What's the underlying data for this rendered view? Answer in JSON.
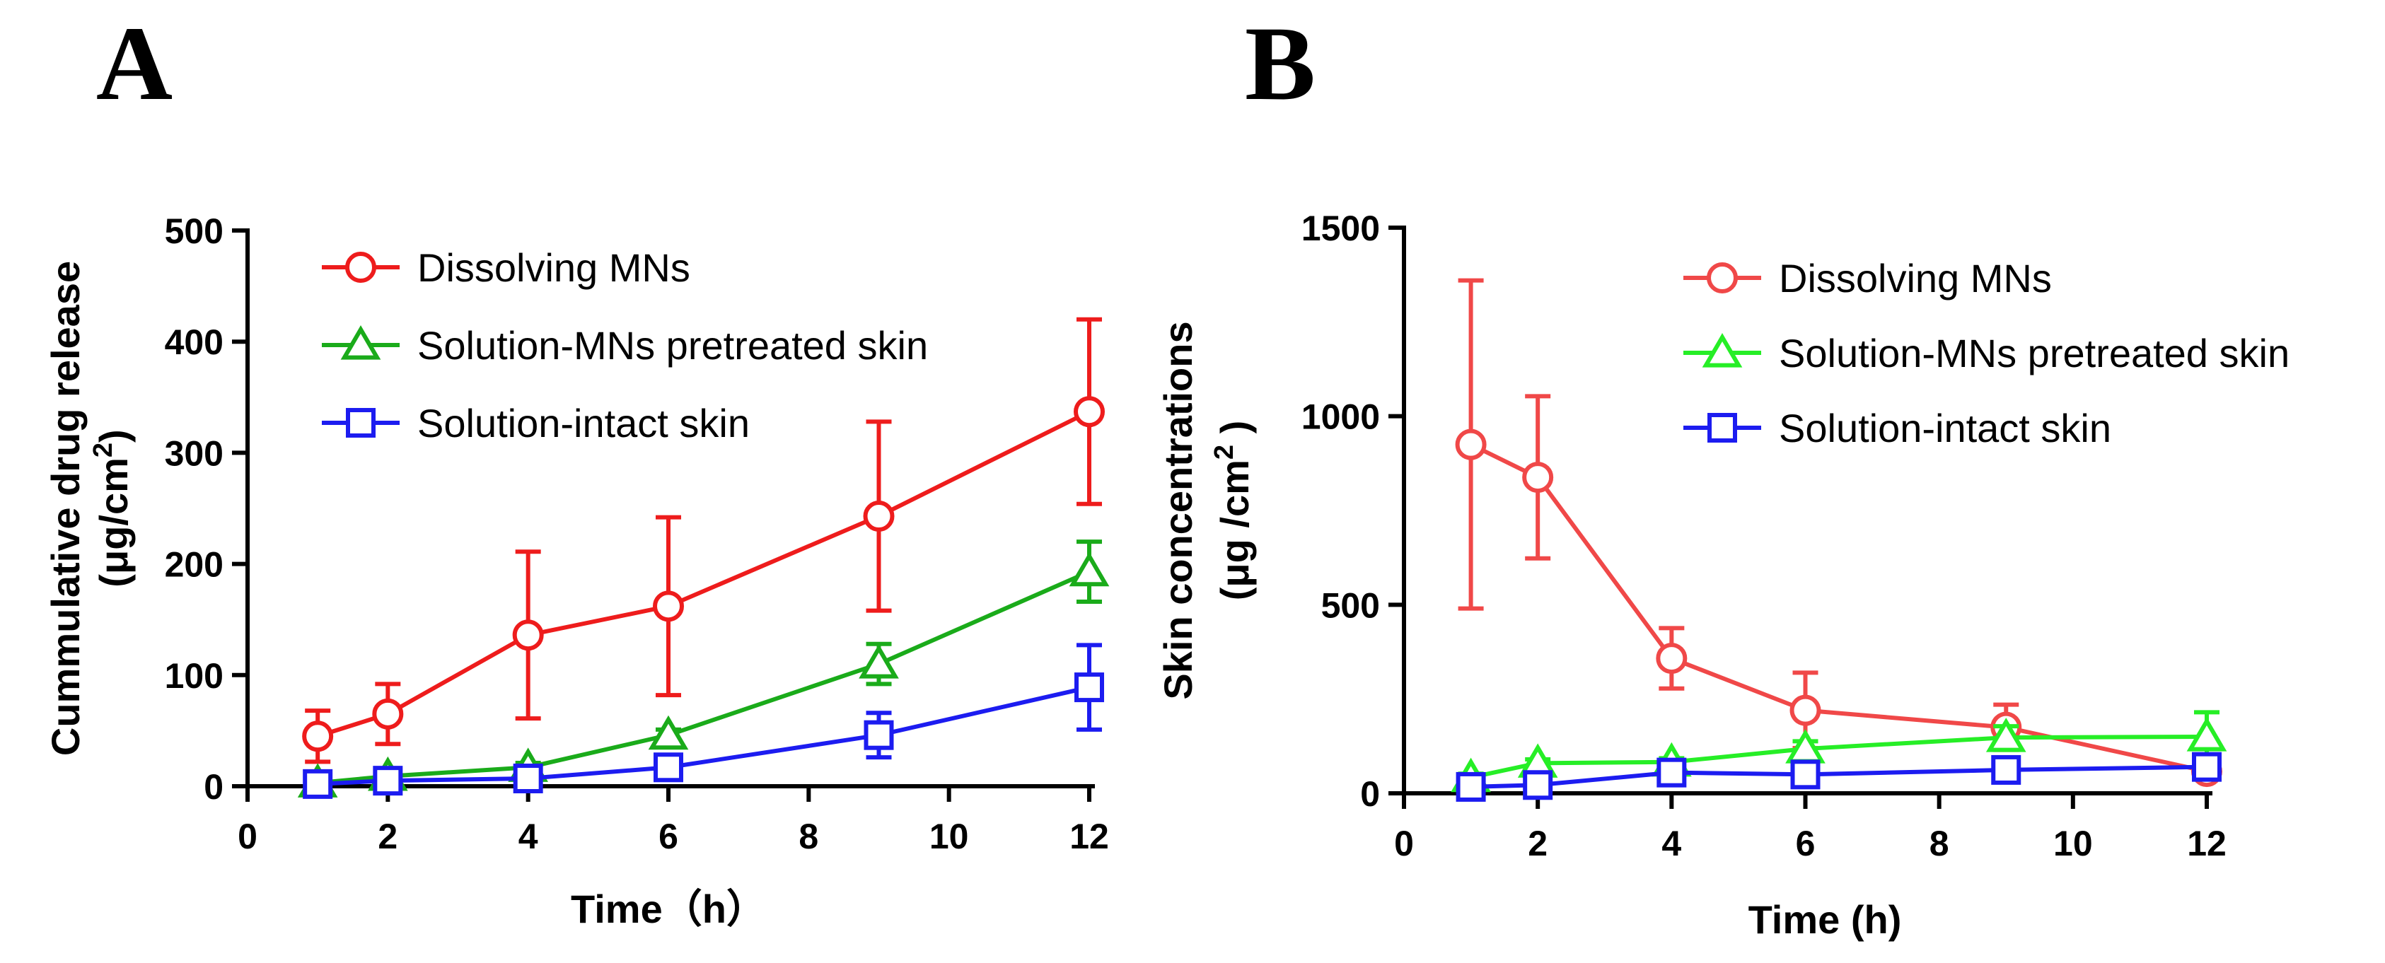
{
  "chart_data": [
    {
      "panel": "A",
      "type": "line",
      "title": "",
      "xlabel": "Time（h）",
      "ylabel": "Cummulative drug release",
      "ylabel_unit": "(μg/cm",
      "ylabel_unit_sup": "2",
      "ylabel_unit_tail": ")",
      "xlim": [
        0,
        12
      ],
      "ylim": [
        0,
        500
      ],
      "xticks": [
        "0",
        "2",
        "4",
        "6",
        "8",
        "10",
        "12"
      ],
      "yticks": [
        "0",
        "100",
        "200",
        "300",
        "400",
        "500"
      ],
      "x": [
        1,
        2,
        4,
        6,
        9,
        12
      ],
      "legend_position": "top-left",
      "series": [
        {
          "name": "Dissolving MNs",
          "marker": "circle",
          "color": "#ee1c1c",
          "values": [
            45,
            65,
            136,
            162,
            243,
            337
          ],
          "errors": [
            23,
            27,
            75,
            80,
            85,
            83
          ]
        },
        {
          "name": "Solution-MNs pretreated skin",
          "marker": "triangle",
          "color": "#1aab1a",
          "values": [
            3,
            9,
            17,
            46,
            110,
            193
          ],
          "errors": [
            2,
            3,
            4,
            5,
            18,
            27
          ]
        },
        {
          "name": "Solution-intact skin",
          "marker": "square",
          "color": "#1c1cf0",
          "values": [
            2,
            5,
            7,
            17,
            46,
            89
          ],
          "errors": [
            1,
            2,
            3,
            4,
            20,
            38
          ]
        }
      ]
    },
    {
      "panel": "B",
      "type": "line",
      "title": "",
      "xlabel": "Time (h)",
      "ylabel": "Skin concentrations",
      "ylabel_unit": "(μg /cm",
      "ylabel_unit_sup": "2",
      "ylabel_unit_tail": " )",
      "xlim": [
        0,
        12
      ],
      "ylim": [
        0,
        1500
      ],
      "xticks": [
        "0",
        "2",
        "4",
        "6",
        "8",
        "10",
        "12"
      ],
      "yticks": [
        "0",
        "500",
        "1000",
        "1500"
      ],
      "x": [
        1,
        2,
        4,
        6,
        9,
        12
      ],
      "legend_position": "top-right",
      "series": [
        {
          "name": "Dissolving MNs",
          "marker": "circle",
          "color": "#f04848",
          "values": [
            925,
            838,
            358,
            220,
            175,
            58
          ],
          "errors": [
            435,
            215,
            80,
            100,
            60,
            10
          ]
        },
        {
          "name": "Solution-MNs pretreated skin",
          "marker": "triangle",
          "color": "#26ee26",
          "values": [
            42,
            80,
            83,
            118,
            148,
            150
          ],
          "errors": [
            10,
            10,
            10,
            20,
            30,
            65
          ]
        },
        {
          "name": "Solution-intact skin",
          "marker": "square",
          "color": "#1c1cf0",
          "values": [
            17,
            22,
            55,
            50,
            62,
            70
          ],
          "errors": [
            3,
            4,
            6,
            6,
            8,
            10
          ]
        }
      ]
    }
  ]
}
